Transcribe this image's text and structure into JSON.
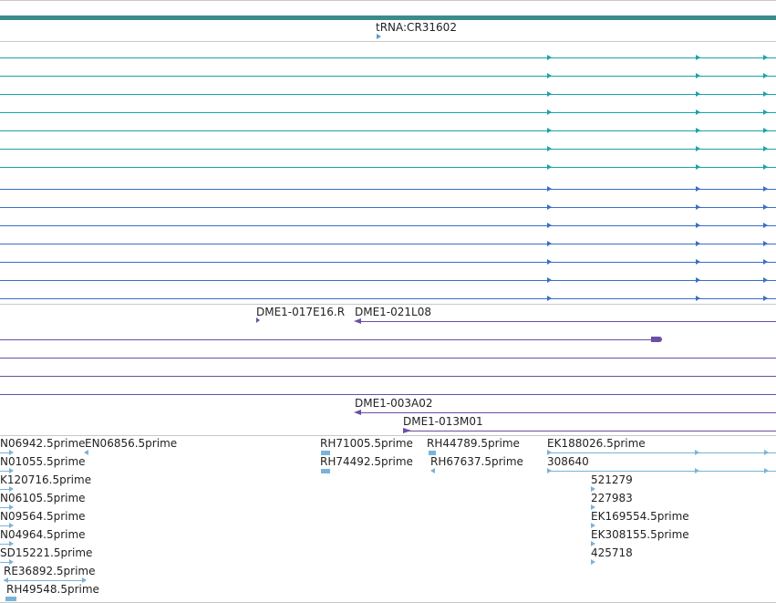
{
  "colors": {
    "gene": "#3b8b8b",
    "teal": "#1aa3a8",
    "blue": "#3a6fc2",
    "purple": "#6a4fa3",
    "est": "#7ab3d9"
  },
  "trna_label": "tRNA:CR31602",
  "bac_labels": {
    "a": "DME1-017E16.R",
    "b": "DME1-021L08",
    "c": "DME1-003A02",
    "d": "DME1-013M01"
  },
  "est_labels": {
    "r0c0": "N06942.5prime",
    "r0c1": "EN06856.5prime",
    "r0c2": "RH71005.5prime",
    "r0c3": "RH44789.5prime",
    "r0c4": "EK188026.5prime",
    "r1c0": "N01055.5prime",
    "r1c2": "RH74492.5prime",
    "r1c3": "RH67637.5prime",
    "r1c4": "308640",
    "r2c0": "K120716.5prime",
    "r2c4": "521279",
    "r3c0": "N06105.5prime",
    "r3c4": "227983",
    "r4c0": "N09564.5prime",
    "r4c4": "EK169554.5prime",
    "r5c0": "N04964.5prime",
    "r5c4": "EK308155.5prime",
    "r6c0": "SD15221.5prime",
    "r6c4": "425718",
    "r7c0": "RE36892.5prime",
    "r8c0": "RH49548.5prime"
  }
}
